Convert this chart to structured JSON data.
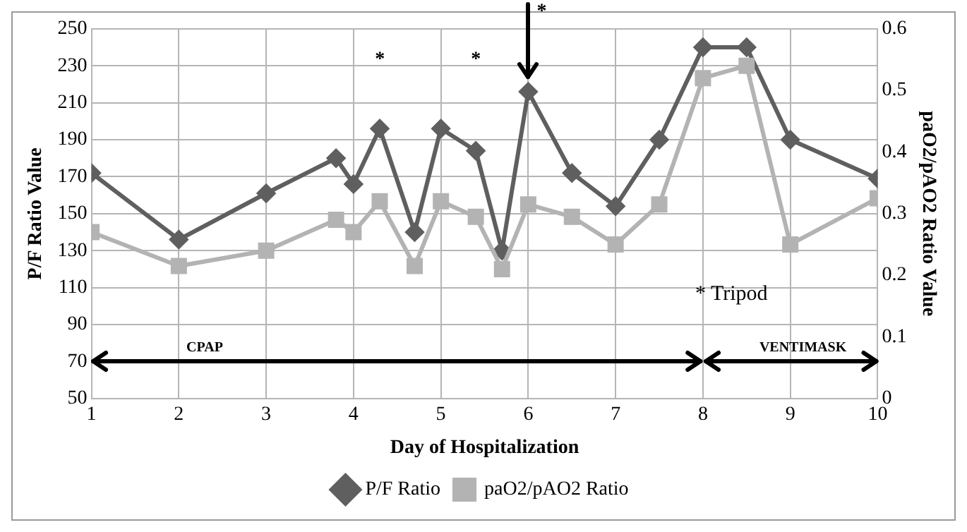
{
  "chart_data": {
    "type": "line",
    "xlabel": "Day of Hospitalization",
    "ylabel": "P/F Ratio Value",
    "y2label": "paO2/pAO2 Ratio Value",
    "xlim": [
      1,
      10
    ],
    "xticks": [
      1,
      2,
      3,
      4,
      5,
      6,
      7,
      8,
      9,
      10
    ],
    "ylim": [
      50,
      250
    ],
    "yticks": [
      50,
      70,
      90,
      110,
      130,
      150,
      170,
      190,
      210,
      230,
      250
    ],
    "y2lim": [
      0,
      0.6
    ],
    "y2ticks": [
      0,
      0.1,
      0.2,
      0.3,
      0.4,
      0.5,
      0.6
    ],
    "grid": true,
    "legend": "bottom",
    "series": [
      {
        "name": "P/F Ratio",
        "color": "#5f5f5f",
        "marker": "diamond",
        "x": [
          1,
          2,
          3,
          3.8,
          4,
          4.3,
          4.7,
          5,
          5.4,
          5.7,
          6,
          6.5,
          7,
          7.5,
          8,
          8.5,
          9,
          10
        ],
        "values": [
          172,
          136,
          161,
          180,
          166,
          196,
          140,
          196,
          184,
          130,
          216,
          172,
          154,
          190,
          240,
          240,
          190,
          169
        ]
      },
      {
        "name": "paO2/pAO2 Ratio",
        "color": "#b3b3b3",
        "marker": "square",
        "axis": "y2",
        "x": [
          1,
          2,
          3,
          3.8,
          4,
          4.3,
          4.7,
          5,
          5.4,
          5.7,
          6,
          6.5,
          7,
          7.5,
          8,
          8.5,
          9,
          10
        ],
        "values": [
          0.27,
          0.215,
          0.24,
          0.29,
          0.27,
          0.32,
          0.215,
          0.32,
          0.295,
          0.21,
          0.315,
          0.295,
          0.25,
          0.315,
          0.52,
          0.54,
          0.25,
          0.325
        ]
      }
    ],
    "annotations": [
      "*",
      "*",
      {
        "text": "*",
        "x": 6,
        "y": 216
      },
      "* Tripod",
      "CPAP",
      "VENTIMASK"
    ]
  }
}
